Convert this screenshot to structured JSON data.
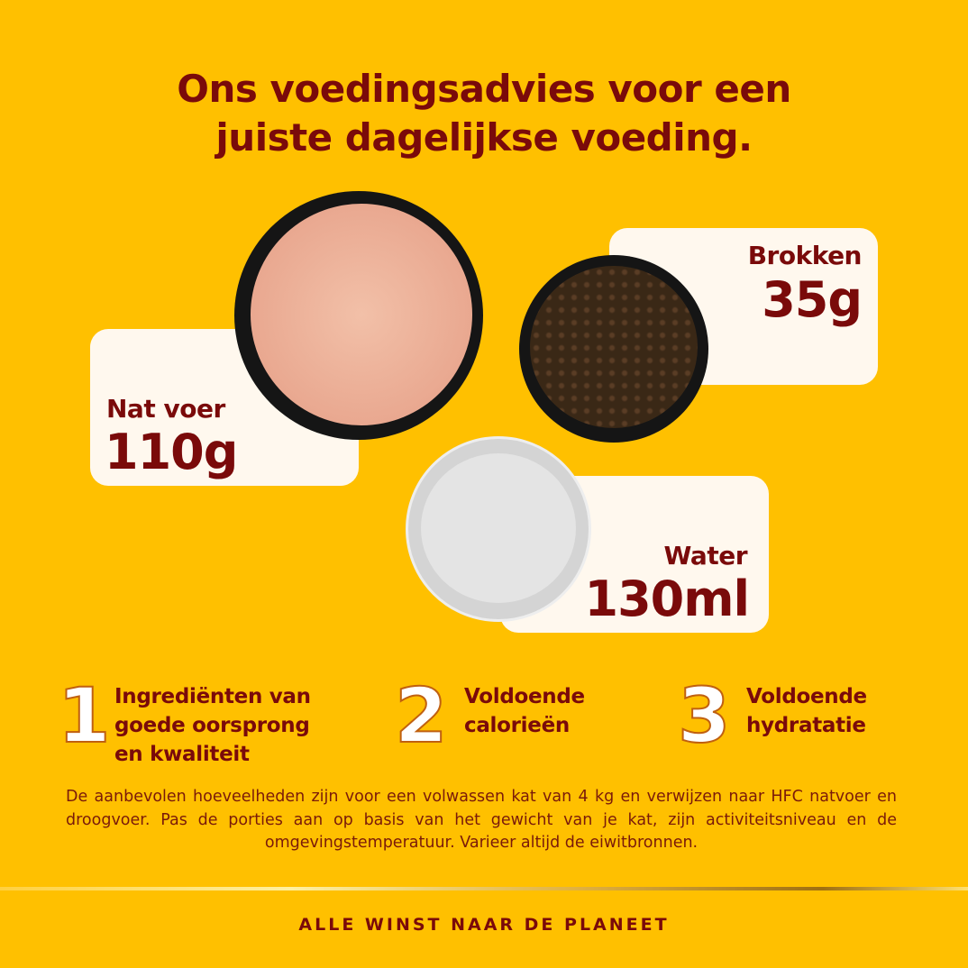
{
  "title": {
    "line1": "Ons voedingsadvies voor een",
    "line2": "juiste dagelijkse voeding."
  },
  "portions": [
    {
      "label": "Nat voer",
      "value": "110g"
    },
    {
      "label": "Brokken",
      "value": "35g"
    },
    {
      "label": "Water",
      "value": "130ml"
    }
  ],
  "features": [
    {
      "number": "1",
      "text": [
        "Ingrediënten van",
        "goede oorsprong",
        "en kwaliteit"
      ]
    },
    {
      "number": "2",
      "text": [
        "Voldoende",
        "calorieën"
      ]
    },
    {
      "number": "3",
      "text": [
        "Voldoende",
        "hydratatie"
      ]
    }
  ],
  "disclaimer": "De aanbevolen hoeveelheden zijn voor een volwassen kat van 4 kg en verwijzen naar HFC natvoer en droogvoer. Pas de porties aan op basis van het gewicht van je kat, zijn activiteitsniveau en de omgevingstemperatuur. Varieer altijd de eiwitbronnen.",
  "footer": "ALLE WINST NAAR DE PLANEET",
  "colors": {
    "background": "#FFC000",
    "text": "#7A0A0A",
    "card": "#FFF8EE"
  }
}
